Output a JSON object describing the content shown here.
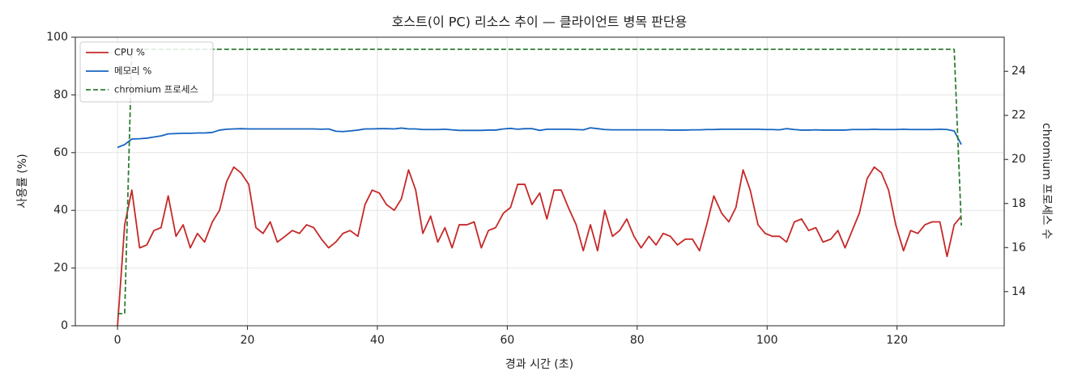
{
  "chart_data": {
    "type": "line",
    "title": "호스트(이 PC) 리소스 추이 — 클라이언트 병목 판단용",
    "x_label": "경과 시간 (초)",
    "y_label": "사용률 (%)",
    "y2_label": "chromium 프로세스 수",
    "xlim": [
      -6.5,
      136.5
    ],
    "xticks": [
      0,
      20,
      40,
      60,
      80,
      100,
      120
    ],
    "ylim": [
      0,
      100
    ],
    "yticks": [
      0,
      20,
      40,
      60,
      80,
      100
    ],
    "y2lim": [
      12.45,
      25.55
    ],
    "y2ticks": [
      14,
      16,
      18,
      20,
      22,
      24
    ],
    "grid": true,
    "legend": "upper left",
    "x": [
      0,
      1.1,
      2.2,
      3.4,
      4.5,
      5.6,
      6.7,
      7.8,
      9,
      10.1,
      11.2,
      12.3,
      13.4,
      14.6,
      15.7,
      16.8,
      17.9,
      19,
      20.2,
      21.3,
      22.4,
      23.5,
      24.6,
      25.8,
      26.9,
      28,
      29.1,
      30.2,
      31.4,
      32.5,
      33.6,
      34.7,
      35.8,
      37,
      38.1,
      39.2,
      40.3,
      41.4,
      42.6,
      43.7,
      44.8,
      45.9,
      47,
      48.2,
      49.3,
      50.4,
      51.5,
      52.6,
      53.8,
      54.9,
      56,
      57.1,
      58.2,
      59.4,
      60.5,
      61.6,
      62.7,
      63.8,
      65,
      66.1,
      67.2,
      68.3,
      69.4,
      70.6,
      71.7,
      72.8,
      73.9,
      75,
      76.2,
      77.3,
      78.4,
      79.5,
      80.6,
      81.8,
      82.9,
      84,
      85.1,
      86.2,
      87.4,
      88.5,
      89.6,
      90.7,
      91.8,
      93,
      94.1,
      95.2,
      96.3,
      97.4,
      98.6,
      99.7,
      100.8,
      101.9,
      103,
      104.2,
      105.3,
      106.4,
      107.5,
      108.6,
      109.8,
      110.9,
      112,
      113.1,
      114.2,
      115.4,
      116.5,
      117.6,
      118.7,
      119.8,
      121,
      122.1,
      123.2,
      124.3,
      125.4,
      126.6,
      127.7,
      128.8,
      129.9
    ],
    "series": [
      {
        "name": "CPU %",
        "color": "#c62828",
        "linestyle": "solid",
        "values": [
          0,
          35,
          47,
          27,
          28,
          33,
          34,
          45,
          31,
          35,
          27,
          32,
          29,
          36,
          40,
          50,
          55,
          53,
          49,
          34,
          32,
          36,
          29,
          31,
          33,
          32,
          35,
          34,
          30,
          27,
          29,
          32,
          33,
          31,
          42,
          47,
          46,
          42,
          40,
          44,
          54,
          47,
          32,
          38,
          29,
          34,
          27,
          35,
          35,
          36,
          27,
          33,
          34,
          39,
          41,
          49,
          49,
          42,
          46,
          37,
          47,
          47,
          41,
          35,
          26,
          35,
          26,
          40,
          31,
          33,
          37,
          31,
          27,
          31,
          28,
          32,
          31,
          28,
          30,
          30,
          26,
          35,
          45,
          39,
          36,
          41,
          54,
          47,
          35,
          32,
          31,
          31,
          29,
          36,
          37,
          33,
          34,
          29,
          30,
          33,
          27,
          33,
          39,
          51,
          55,
          53,
          47,
          35,
          26,
          33,
          32,
          35,
          36,
          36,
          24,
          35,
          38
        ]
      },
      {
        "name": "메모리 %",
        "color": "#1565c0",
        "linestyle": "solid",
        "values": [
          61.8,
          62.8,
          64.7,
          64.8,
          65,
          65.4,
          65.8,
          66.5,
          66.6,
          66.7,
          66.7,
          66.8,
          66.8,
          67,
          67.8,
          68.1,
          68.2,
          68.3,
          68.2,
          68.2,
          68.2,
          68.2,
          68.2,
          68.2,
          68.2,
          68.2,
          68.2,
          68.2,
          68.1,
          68.2,
          67.4,
          67.3,
          67.5,
          67.8,
          68.2,
          68.2,
          68.3,
          68.3,
          68.2,
          68.5,
          68.2,
          68.2,
          68,
          68,
          68,
          68.1,
          67.9,
          67.7,
          67.7,
          67.7,
          67.7,
          67.8,
          67.8,
          68.2,
          68.4,
          68.1,
          68.3,
          68.3,
          67.7,
          68.1,
          68.1,
          68.1,
          68.1,
          68,
          67.9,
          68.6,
          68.3,
          68,
          67.9,
          67.9,
          67.9,
          67.9,
          67.9,
          67.9,
          67.9,
          67.9,
          67.8,
          67.8,
          67.8,
          67.9,
          67.9,
          68,
          68,
          68.1,
          68.1,
          68.1,
          68.1,
          68.1,
          68.1,
          68,
          68,
          67.9,
          68.3,
          68,
          67.8,
          67.8,
          67.9,
          67.8,
          67.8,
          67.8,
          67.8,
          68,
          68,
          68,
          68.1,
          68,
          68,
          68,
          68.1,
          68,
          68,
          68,
          68,
          68.1,
          68,
          67.5,
          62.8
        ]
      },
      {
        "name": "chromium 프로세스",
        "color": "#2e7d32",
        "linestyle": "dashed",
        "axis": "y2",
        "values": [
          13,
          13,
          25,
          25,
          25,
          25,
          25,
          25,
          25,
          25,
          25,
          25,
          25,
          25,
          25,
          25,
          25,
          25,
          25,
          25,
          25,
          25,
          25,
          25,
          25,
          25,
          25,
          25,
          25,
          25,
          25,
          25,
          25,
          25,
          25,
          25,
          25,
          25,
          25,
          25,
          25,
          25,
          25,
          25,
          25,
          25,
          25,
          25,
          25,
          25,
          25,
          25,
          25,
          25,
          25,
          25,
          25,
          25,
          25,
          25,
          25,
          25,
          25,
          25,
          25,
          25,
          25,
          25,
          25,
          25,
          25,
          25,
          25,
          25,
          25,
          25,
          25,
          25,
          25,
          25,
          25,
          25,
          25,
          25,
          25,
          25,
          25,
          25,
          25,
          25,
          25,
          25,
          25,
          25,
          25,
          25,
          25,
          25,
          25,
          25,
          25,
          25,
          25,
          25,
          25,
          25,
          25,
          25,
          25,
          25,
          25,
          25,
          25,
          25,
          25,
          25,
          17
        ]
      }
    ]
  }
}
